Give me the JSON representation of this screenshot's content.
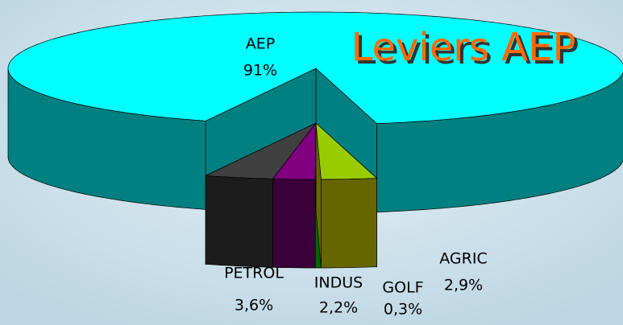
{
  "chart_data": {
    "type": "pie3d",
    "title": "Leviers AEP",
    "categories": [
      "AEP",
      "PETROL",
      "INDUS",
      "GOLF",
      "AGRIC"
    ],
    "values": [
      91,
      3.6,
      2.2,
      0.3,
      2.9
    ],
    "value_labels": [
      "91%",
      "3,6%",
      "2,2%",
      "0,3%",
      "2,9%"
    ],
    "colors": [
      "#00ffff",
      "#404040",
      "#800080",
      "#00cc00",
      "#99cc00"
    ],
    "side_colors": [
      "#008080",
      "#1c1c1c",
      "#3a003a",
      "#006600",
      "#666600"
    ],
    "exploded": [
      false,
      true,
      true,
      true,
      true
    ]
  }
}
